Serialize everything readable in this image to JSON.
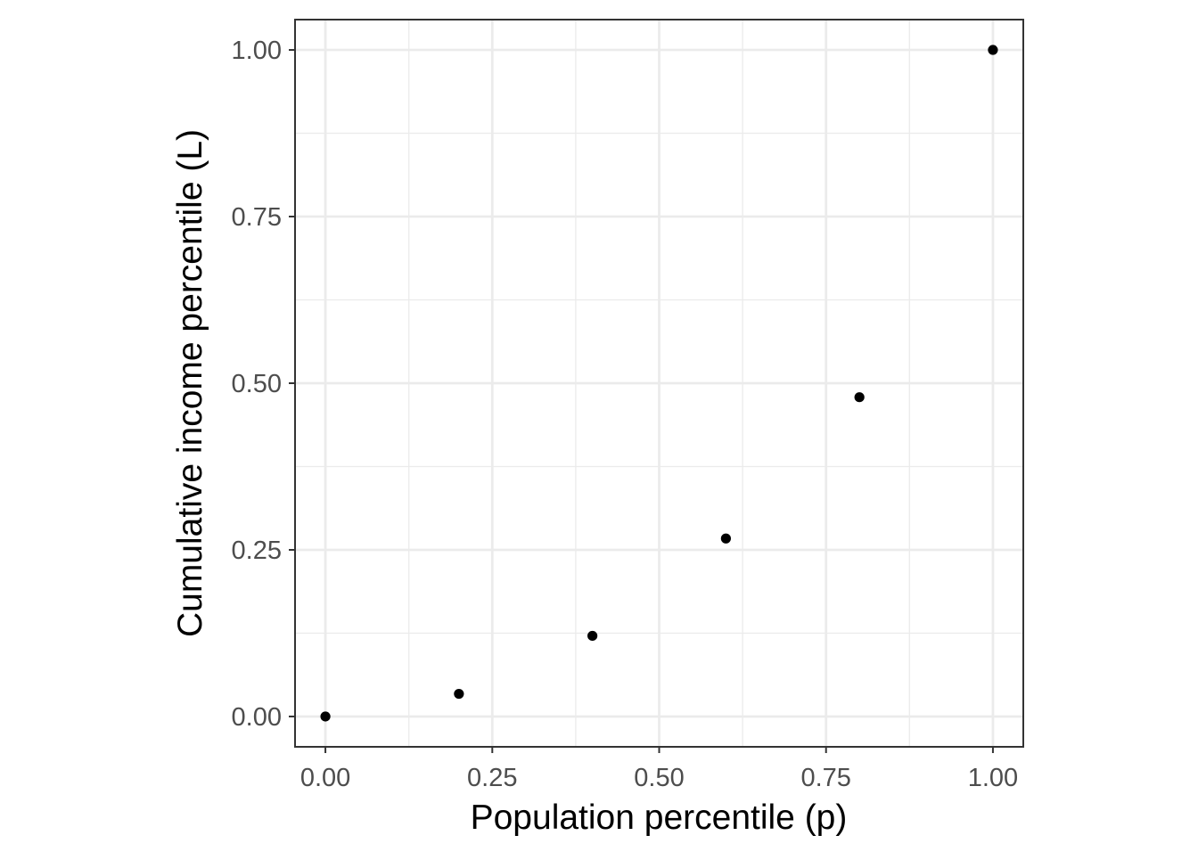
{
  "chart_data": {
    "type": "scatter",
    "title": "",
    "xlabel": "Population percentile (p)",
    "ylabel": "Cumulative income percentile (L)",
    "xlim": [
      0,
      1
    ],
    "ylim": [
      0,
      1
    ],
    "x_ticks": [
      0,
      0.25,
      0.5,
      0.75,
      1
    ],
    "y_ticks": [
      0,
      0.25,
      0.5,
      0.75,
      1
    ],
    "x_tick_labels": [
      "0.00",
      "0.25",
      "0.50",
      "0.75",
      "1.00"
    ],
    "y_tick_labels": [
      "0.00",
      "0.25",
      "0.50",
      "0.75",
      "1.00"
    ],
    "grid": true,
    "legend": "none",
    "point_color": "#000000",
    "panel_border_color": "#333333",
    "grid_color": "#ebebeb",
    "x": [
      0.0,
      0.2,
      0.4,
      0.6,
      0.8,
      1.0
    ],
    "y": [
      0.0,
      0.034,
      0.121,
      0.267,
      0.479,
      1.0
    ]
  }
}
